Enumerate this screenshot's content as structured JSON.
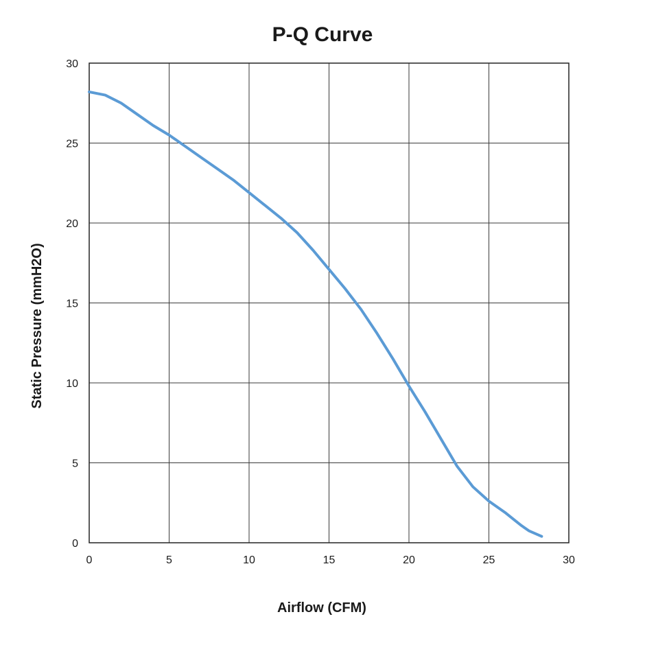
{
  "chart_data": {
    "type": "line",
    "title": "P-Q Curve",
    "xlabel": "Airflow (CFM)",
    "ylabel": "Static Pressure (mmH2O)",
    "xlim": [
      0,
      30
    ],
    "ylim": [
      0,
      30
    ],
    "xticks": [
      "0",
      "5",
      "10",
      "15",
      "20",
      "25",
      "30"
    ],
    "yticks": [
      "0",
      "5",
      "10",
      "15",
      "20",
      "25",
      "30"
    ],
    "grid": true,
    "legend": "none",
    "series": [
      {
        "color": "#5b9bd5",
        "points": [
          [
            0,
            28.2
          ],
          [
            1,
            28.0
          ],
          [
            2,
            27.5
          ],
          [
            3,
            26.8
          ],
          [
            4,
            26.1
          ],
          [
            5,
            25.5
          ],
          [
            6,
            24.8
          ],
          [
            7,
            24.1
          ],
          [
            8,
            23.4
          ],
          [
            9,
            22.7
          ],
          [
            10,
            21.9
          ],
          [
            11,
            21.1
          ],
          [
            12,
            20.3
          ],
          [
            13,
            19.4
          ],
          [
            14,
            18.3
          ],
          [
            15,
            17.1
          ],
          [
            16,
            15.9
          ],
          [
            17,
            14.6
          ],
          [
            18,
            13.1
          ],
          [
            19,
            11.5
          ],
          [
            20,
            9.8
          ],
          [
            21,
            8.2
          ],
          [
            22,
            6.5
          ],
          [
            23,
            4.8
          ],
          [
            24,
            3.5
          ],
          [
            25,
            2.6
          ],
          [
            26,
            1.9
          ],
          [
            27,
            1.1
          ],
          [
            27.5,
            0.75
          ],
          [
            28.3,
            0.4
          ]
        ]
      }
    ]
  }
}
